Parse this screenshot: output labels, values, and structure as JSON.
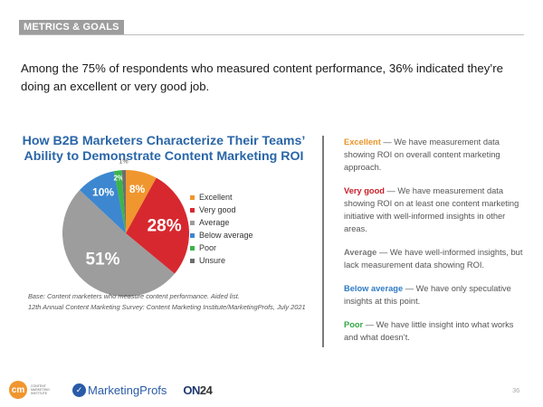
{
  "section": {
    "tag": "METRICS & GOALS"
  },
  "headline": "Among the 75% of respondents who measured content performance, 36% indicated they’re doing an excellent or very good job.",
  "chart_data": {
    "type": "pie",
    "title": "How B2B Marketers Characterize Their Teams’ Ability to Demonstrate Content Marketing ROI",
    "title_lines": [
      "How B2B Marketers Characterize Their Teams’",
      "Ability to Demonstrate Content Marketing ROI"
    ],
    "categories": [
      "Excellent",
      "Very good",
      "Average",
      "Below average",
      "Poor",
      "Unsure"
    ],
    "values": [
      8,
      28,
      51,
      10,
      2,
      1
    ],
    "labels": [
      "8%",
      "28%",
      "51%",
      "10%",
      "2%",
      "1%"
    ],
    "colors": [
      "#F0962E",
      "#D7282F",
      "#9D9D9D",
      "#3C87D0",
      "#3BB44A",
      "#6D6E71"
    ],
    "start": "12 o'clock",
    "direction": "clockwise",
    "legend_position": "right"
  },
  "base_note": {
    "line1": "Base: Content marketers who measure content performance. Aided list.",
    "line2": "12th Annual Content Marketing Survey: Content Marketing Institute/MarketingProfs, July 2021"
  },
  "definitions": [
    {
      "term": "Excellent",
      "color": "#E8952A",
      "text": " — We have measurement data showing ROI on overall content marketing approach."
    },
    {
      "term": "Very good",
      "color": "#C8202A",
      "text": " — We have measurement data showing ROI on at least one content marketing initiative with well-informed insights in other areas."
    },
    {
      "term": "Average",
      "color": "#777777",
      "text": " — We have well-informed insights, but lack measurement data showing ROI."
    },
    {
      "term": "Below average",
      "color": "#2F7BC4",
      "text": " — We have only speculative insights at this point."
    },
    {
      "term": "Poor",
      "color": "#34A844",
      "text": " — We have little insight into what works and what doesn’t."
    }
  ],
  "logos": {
    "cmi_mark": "cm",
    "cmi_text": "CONTENT MARKETING INSTITUTE",
    "marketingprofs": "MarketingProfs",
    "on24_a": "ON",
    "on24_b": "24"
  },
  "page_number": "36"
}
